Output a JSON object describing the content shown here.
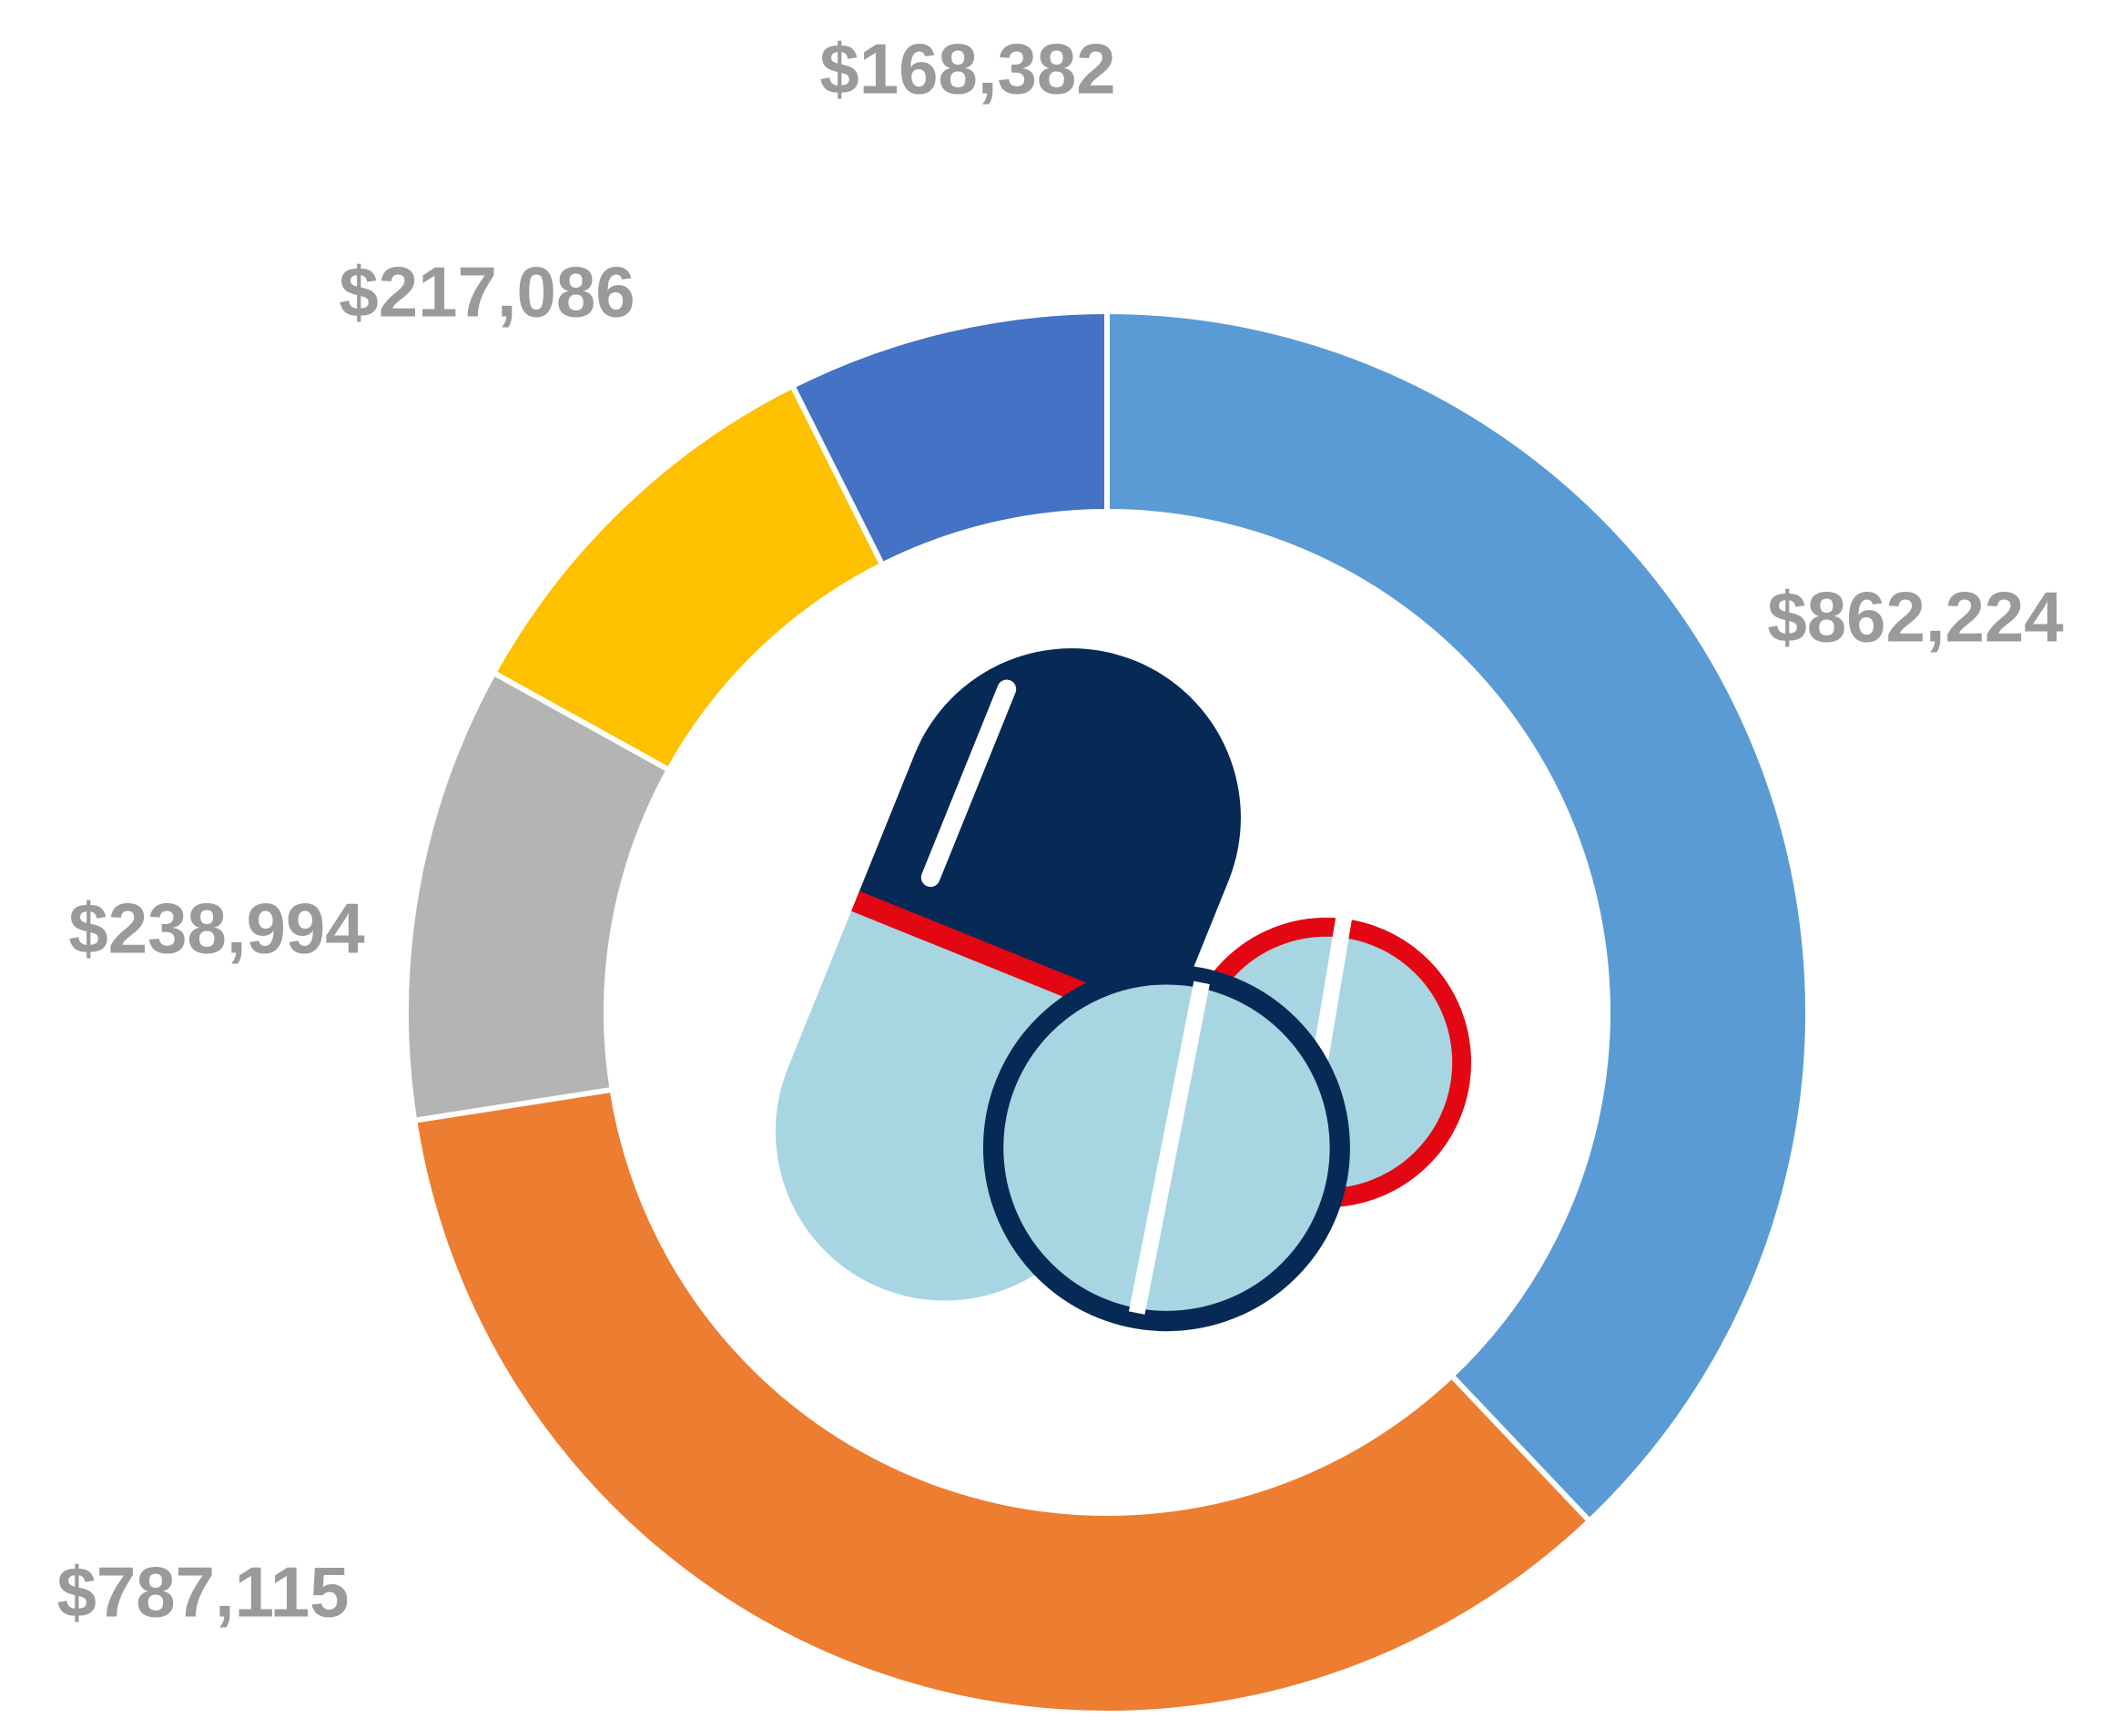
{
  "chart_data": {
    "type": "donut",
    "values": [
      862224,
      787115,
      238994,
      217086,
      168382
    ],
    "value_labels": [
      "$862,224",
      "$787,115",
      "$238,994",
      "$217,086",
      "$168,382"
    ],
    "colors": [
      "#5b9bd5",
      "#ed7d31",
      "#b4b4b4",
      "#ffc000",
      "#4472c4"
    ]
  }
}
